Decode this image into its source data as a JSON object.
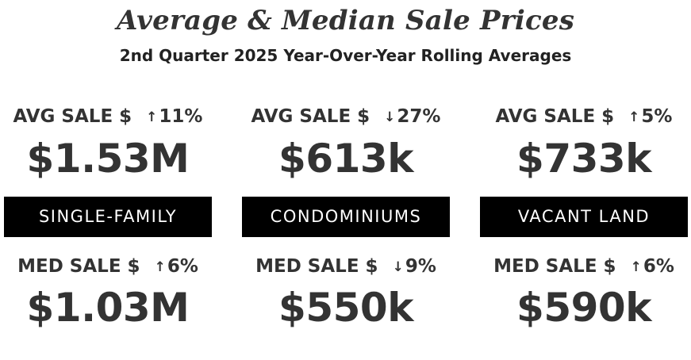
{
  "header": {
    "title": "Average & Median Sale Prices",
    "subtitle": "2nd Quarter 2025 Year-Over-Year Rolling Averages"
  },
  "columns": [
    {
      "category": "SINGLE-FAMILY",
      "avg": {
        "label": "AVG SALE $",
        "direction": "up",
        "arrow": "↑",
        "change": "11%",
        "value": "$1.53M"
      },
      "med": {
        "label": "MED SALE $",
        "direction": "up",
        "arrow": "↑",
        "change": "6%",
        "value": "$1.03M"
      }
    },
    {
      "category": "CONDOMINIUMS",
      "avg": {
        "label": "AVG SALE $",
        "direction": "down",
        "arrow": "↓",
        "change": "27%",
        "value": "$613k"
      },
      "med": {
        "label": "MED SALE $",
        "direction": "down",
        "arrow": "↓",
        "change": "9%",
        "value": "$550k"
      }
    },
    {
      "category": "VACANT LAND",
      "avg": {
        "label": "AVG SALE $",
        "direction": "up",
        "arrow": "↑",
        "change": "5%",
        "value": "$733k"
      },
      "med": {
        "label": "MED SALE $",
        "direction": "up",
        "arrow": "↑",
        "change": "6%",
        "value": "$590k"
      }
    }
  ],
  "colors": {
    "text": "#333333",
    "band_background": "#000000",
    "band_text": "#ffffff",
    "page_background": "#ffffff"
  }
}
